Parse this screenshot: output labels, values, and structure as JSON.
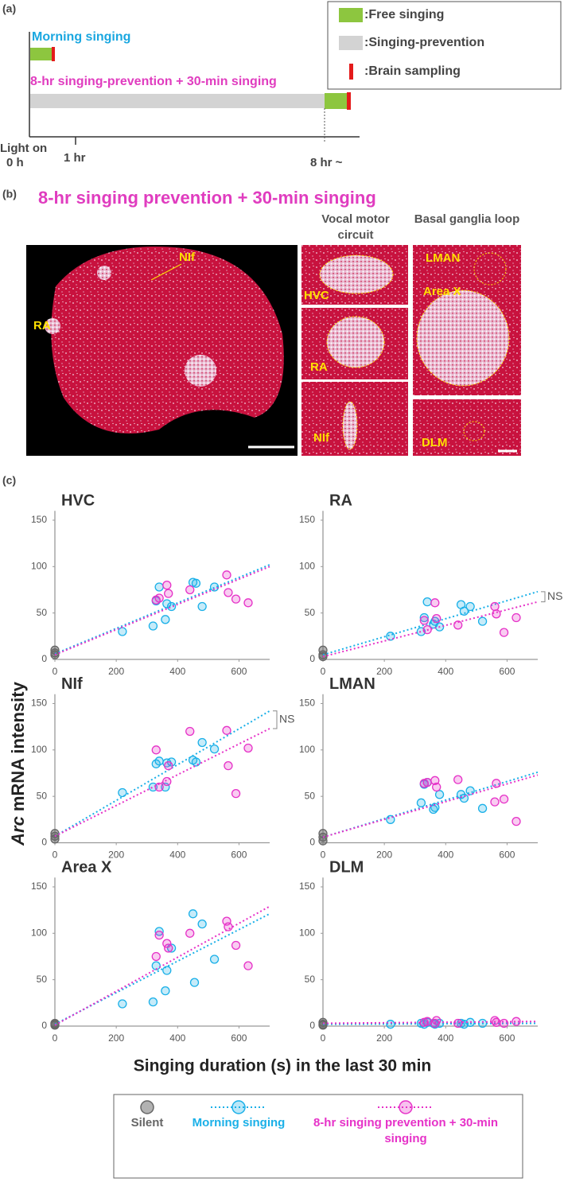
{
  "panel_a": {
    "label": "(a)",
    "legend": [
      ":Free singing",
      ":Singing-prevention",
      ":Brain sampling"
    ],
    "morning": "Morning singing",
    "prevention": "8-hr singing-prevention + 30-min singing",
    "time_labels": {
      "start": [
        "Light on",
        "0 h"
      ],
      "hr1": "1 hr",
      "hr8": "8 hr ~"
    }
  },
  "panel_b": {
    "label": "(b)",
    "title": "8-hr singing prevention + 30-min singing",
    "columns": [
      "Vocal motor circuit",
      "Basal ganglia loop"
    ],
    "regions": [
      "NIf",
      "RA",
      "HVC",
      "RA",
      "NIf",
      "LMAN",
      "Area X",
      "DLM"
    ]
  },
  "panel_c": {
    "label": "(c)",
    "y_label": {
      "italic": "Arc",
      "rest": "mRNA intensity"
    },
    "x_label": "Singing duration (s) in the last 30 min",
    "legend": [
      {
        "name": "Silent",
        "color": "#666666"
      },
      {
        "name": "Morning singing",
        "color": "#1ab0e8"
      },
      {
        "name": "8-hr singing prevention + 30-min singing",
        "color": "#e632c8"
      }
    ]
  },
  "chart_data": [
    {
      "type": "scatter",
      "title": "HVC",
      "xlim": [
        0,
        700
      ],
      "ylim": [
        0,
        160
      ],
      "xticks": [
        0,
        200,
        400,
        600
      ],
      "yticks": [
        0,
        50,
        100,
        150
      ],
      "series": [
        {
          "x": [
            0,
            0,
            0
          ],
          "values": [
            10,
            7,
            5
          ]
        },
        {
          "x": [
            220,
            320,
            330,
            340,
            360,
            365,
            380,
            450,
            460,
            480,
            520
          ],
          "values": [
            30,
            36,
            63,
            78,
            43,
            60,
            57,
            83,
            82,
            57,
            78
          ],
          "fit": [
            6,
            102
          ]
        },
        {
          "x": [
            330,
            340,
            365,
            370,
            440,
            560,
            565,
            590,
            630
          ],
          "values": [
            64,
            66,
            80,
            71,
            75,
            91,
            72,
            65,
            61
          ],
          "fit": [
            5,
            100
          ]
        }
      ]
    },
    {
      "type": "scatter",
      "title": "RA",
      "xlim": [
        0,
        700
      ],
      "ylim": [
        0,
        160
      ],
      "xticks": [
        0,
        200,
        400,
        600
      ],
      "yticks": [
        0,
        50,
        100,
        150
      ],
      "annotation": "NS",
      "series": [
        {
          "x": [
            0,
            0,
            0
          ],
          "values": [
            10,
            5,
            3
          ]
        },
        {
          "x": [
            220,
            320,
            330,
            340,
            360,
            365,
            380,
            450,
            460,
            480,
            520
          ],
          "values": [
            25,
            30,
            45,
            62,
            38,
            41,
            35,
            59,
            52,
            57,
            41
          ],
          "fit": [
            5,
            73
          ]
        },
        {
          "x": [
            330,
            340,
            365,
            370,
            440,
            560,
            565,
            590,
            630
          ],
          "values": [
            42,
            32,
            61,
            44,
            37,
            57,
            49,
            29,
            45
          ],
          "fit": [
            3,
            62
          ]
        }
      ]
    },
    {
      "type": "scatter",
      "title": "NIf",
      "xlim": [
        0,
        700
      ],
      "ylim": [
        0,
        160
      ],
      "xticks": [
        0,
        200,
        400,
        600
      ],
      "yticks": [
        0,
        50,
        100,
        150
      ],
      "annotation": "NS",
      "series": [
        {
          "x": [
            0,
            0,
            0
          ],
          "values": [
            10,
            7,
            4
          ]
        },
        {
          "x": [
            220,
            320,
            330,
            340,
            360,
            365,
            380,
            450,
            460,
            480,
            520
          ],
          "values": [
            54,
            60,
            85,
            88,
            60,
            86,
            87,
            89,
            87,
            108,
            101
          ],
          "fit": [
            7,
            142
          ]
        },
        {
          "x": [
            330,
            340,
            365,
            370,
            440,
            560,
            565,
            590,
            630
          ],
          "values": [
            100,
            60,
            66,
            83,
            120,
            121,
            83,
            53,
            102
          ],
          "fit": [
            7,
            123
          ]
        }
      ]
    },
    {
      "type": "scatter",
      "title": "LMAN",
      "xlim": [
        0,
        700
      ],
      "ylim": [
        0,
        160
      ],
      "xticks": [
        0,
        200,
        400,
        600
      ],
      "yticks": [
        0,
        50,
        100,
        150
      ],
      "series": [
        {
          "x": [
            0,
            0,
            0
          ],
          "values": [
            10,
            6,
            2
          ]
        },
        {
          "x": [
            220,
            320,
            330,
            340,
            360,
            365,
            380,
            450,
            460,
            480,
            520
          ],
          "values": [
            25,
            43,
            63,
            65,
            36,
            38,
            52,
            52,
            48,
            56,
            37
          ],
          "fit": [
            6,
            76
          ]
        },
        {
          "x": [
            330,
            340,
            365,
            370,
            440,
            560,
            565,
            590,
            630
          ],
          "values": [
            64,
            65,
            67,
            60,
            68,
            44,
            64,
            47,
            23
          ],
          "fit": [
            6,
            73
          ]
        }
      ]
    },
    {
      "type": "scatter",
      "title": "Area X",
      "xlim": [
        0,
        700
      ],
      "ylim": [
        0,
        160
      ],
      "xticks": [
        0,
        200,
        400,
        600
      ],
      "yticks": [
        0,
        50,
        100,
        150
      ],
      "series": [
        {
          "x": [
            0,
            0,
            0
          ],
          "values": [
            3,
            2,
            1
          ]
        },
        {
          "x": [
            220,
            320,
            330,
            340,
            360,
            365,
            380,
            450,
            455,
            480,
            520
          ],
          "values": [
            24,
            26,
            65,
            102,
            38,
            60,
            84,
            121,
            47,
            110,
            72
          ],
          "fit": [
            2,
            121
          ]
        },
        {
          "x": [
            330,
            340,
            365,
            370,
            440,
            560,
            565,
            590,
            630
          ],
          "values": [
            75,
            98,
            89,
            84,
            100,
            113,
            107,
            87,
            65
          ],
          "fit": [
            1,
            129
          ]
        }
      ]
    },
    {
      "type": "scatter",
      "title": "DLM",
      "xlim": [
        0,
        700
      ],
      "ylim": [
        0,
        160
      ],
      "xticks": [
        0,
        200,
        400,
        600
      ],
      "yticks": [
        0,
        50,
        100,
        150
      ],
      "series": [
        {
          "x": [
            0,
            0,
            0
          ],
          "values": [
            4,
            2,
            1
          ]
        },
        {
          "x": [
            220,
            320,
            330,
            340,
            360,
            365,
            380,
            450,
            460,
            480,
            520
          ],
          "values": [
            2,
            3,
            2,
            4,
            3,
            2,
            3,
            3,
            2,
            4,
            3
          ],
          "fit": [
            2,
            3
          ]
        },
        {
          "x": [
            330,
            340,
            365,
            370,
            440,
            560,
            565,
            590,
            630
          ],
          "values": [
            4,
            5,
            3,
            6,
            3,
            6,
            4,
            3,
            5
          ],
          "fit": [
            3,
            5
          ]
        }
      ]
    }
  ]
}
